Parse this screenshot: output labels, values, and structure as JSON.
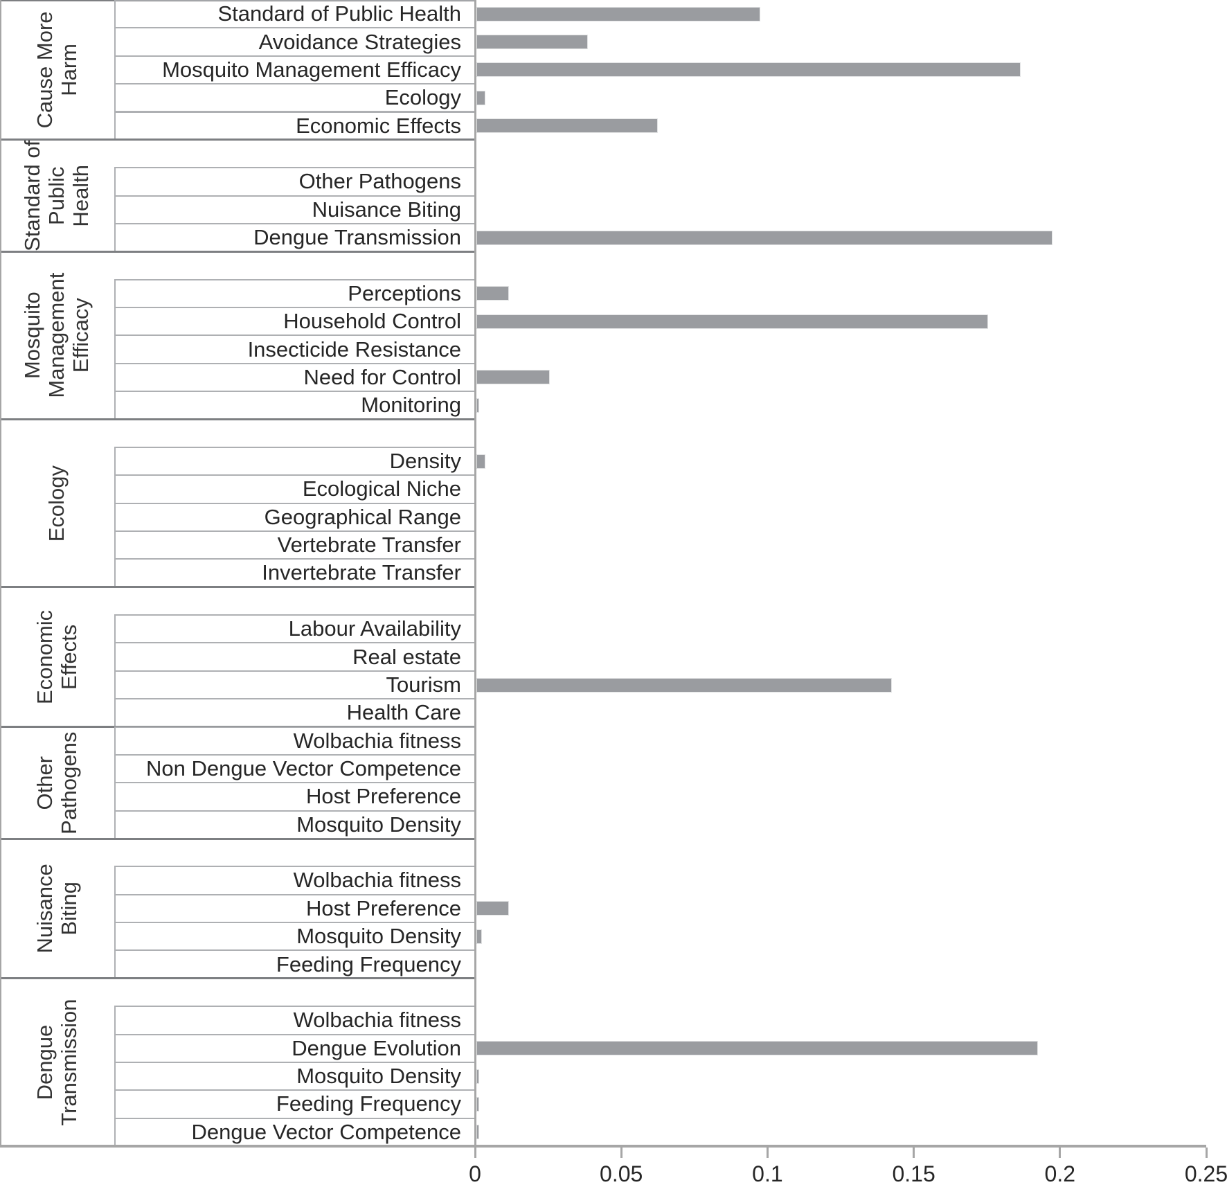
{
  "chart_data": {
    "type": "bar",
    "orientation": "horizontal",
    "title": "",
    "xlabel": "",
    "ylabel": "",
    "xlim": [
      0,
      0.25
    ],
    "x_tick_labels": [
      "0",
      "0.05",
      "0.1",
      "0.15",
      "0.2",
      "0.25"
    ],
    "x_tick_values": [
      0,
      0.05,
      0.1,
      0.15,
      0.2,
      0.25
    ],
    "grid": false,
    "legend": "none",
    "bar_color": "#9a9ca0",
    "groups": [
      {
        "label": "Cause More Harm",
        "items": [
          {
            "label": "Standard of Public Health",
            "value": 0.097
          },
          {
            "label": "Avoidance Strategies",
            "value": 0.038
          },
          {
            "label": "Mosquito Management Efficacy",
            "value": 0.186
          },
          {
            "label": "Ecology",
            "value": 0.003
          },
          {
            "label": "Economic Effects",
            "value": 0.062
          }
        ]
      },
      {
        "label": "Standard of Public Health",
        "items": [
          {
            "label": "",
            "value": null
          },
          {
            "label": "Other Pathogens",
            "value": 0
          },
          {
            "label": "Nuisance Biting",
            "value": 0
          },
          {
            "label": "Dengue Transmission",
            "value": 0.197
          }
        ]
      },
      {
        "label": "Mosquito Management Efficacy",
        "items": [
          {
            "label": "",
            "value": null
          },
          {
            "label": "Perceptions",
            "value": 0.011
          },
          {
            "label": "Household Control",
            "value": 0.175
          },
          {
            "label": "Insecticide Resistance",
            "value": 0
          },
          {
            "label": "Need for Control",
            "value": 0.025
          },
          {
            "label": "Monitoring",
            "value": 0.001
          }
        ]
      },
      {
        "label": "Ecology",
        "items": [
          {
            "label": "",
            "value": null
          },
          {
            "label": "Density",
            "value": 0.003
          },
          {
            "label": "Ecological Niche",
            "value": 0
          },
          {
            "label": "Geographical Range",
            "value": 0
          },
          {
            "label": "Vertebrate Transfer",
            "value": 0
          },
          {
            "label": "Invertebrate Transfer",
            "value": 0
          }
        ]
      },
      {
        "label": "Economic Effects",
        "items": [
          {
            "label": "",
            "value": null
          },
          {
            "label": "Labour Availability",
            "value": 0
          },
          {
            "label": "Real estate",
            "value": 0
          },
          {
            "label": "Tourism",
            "value": 0.142
          },
          {
            "label": "Health Care",
            "value": 0
          }
        ]
      },
      {
        "label": "Other Pathogens",
        "items": [
          {
            "label": "Wolbachia fitness",
            "value": 0
          },
          {
            "label": "Non Dengue Vector Competence",
            "value": 0
          },
          {
            "label": "Host Preference",
            "value": 0
          },
          {
            "label": "Mosquito Density",
            "value": 0
          }
        ]
      },
      {
        "label": "Nuisance Biting",
        "items": [
          {
            "label": "",
            "value": null
          },
          {
            "label": "Wolbachia fitness",
            "value": 0
          },
          {
            "label": "Host Preference",
            "value": 0.011
          },
          {
            "label": "Mosquito Density",
            "value": 0.002
          },
          {
            "label": "Feeding Frequency",
            "value": 0
          }
        ]
      },
      {
        "label": "Dengue Transmission",
        "items": [
          {
            "label": "",
            "value": null
          },
          {
            "label": "Wolbachia fitness",
            "value": 0
          },
          {
            "label": "Dengue Evolution",
            "value": 0.192
          },
          {
            "label": "Mosquito Density",
            "value": 0.001
          },
          {
            "label": "Feeding Frequency",
            "value": 0.001
          },
          {
            "label": "Dengue Vector Competence",
            "value": 0.001
          }
        ]
      }
    ]
  },
  "colors": {
    "bar": "#9a9ca0",
    "axis_line": "#a6a6a6",
    "box_border": "#aeb0b3",
    "group_separator": "#7d7f82",
    "text": "#262626"
  }
}
